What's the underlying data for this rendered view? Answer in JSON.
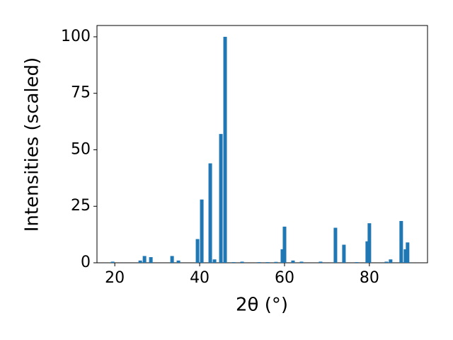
{
  "chart_data": {
    "type": "bar",
    "xlabel": "2θ (°)",
    "ylabel": "Intensities (scaled)",
    "x": [
      19.5,
      26,
      27,
      28.5,
      33.5,
      35,
      39.5,
      40.5,
      42.5,
      43.5,
      45,
      46,
      48,
      50,
      54,
      56,
      58,
      59.5,
      60,
      62,
      64,
      68.5,
      72,
      74,
      77,
      79.5,
      80,
      84,
      85,
      87.5,
      88.5,
      89
    ],
    "values": [
      0.5,
      1,
      3,
      2.5,
      3,
      1,
      10.5,
      28,
      44,
      1.5,
      57,
      100,
      0.3,
      0.5,
      0.3,
      0.3,
      0.4,
      6,
      16,
      1,
      0.5,
      0.5,
      15.5,
      8,
      0.3,
      9.5,
      17.5,
      0.5,
      1.5,
      18.5,
      6,
      9
    ],
    "color": "#1f77b4",
    "xlim": [
      15.8,
      93.7
    ],
    "ylim": [
      0,
      105
    ],
    "xticks": [
      20,
      40,
      60,
      80
    ],
    "yticks": [
      0,
      25,
      50,
      75,
      100
    ]
  }
}
